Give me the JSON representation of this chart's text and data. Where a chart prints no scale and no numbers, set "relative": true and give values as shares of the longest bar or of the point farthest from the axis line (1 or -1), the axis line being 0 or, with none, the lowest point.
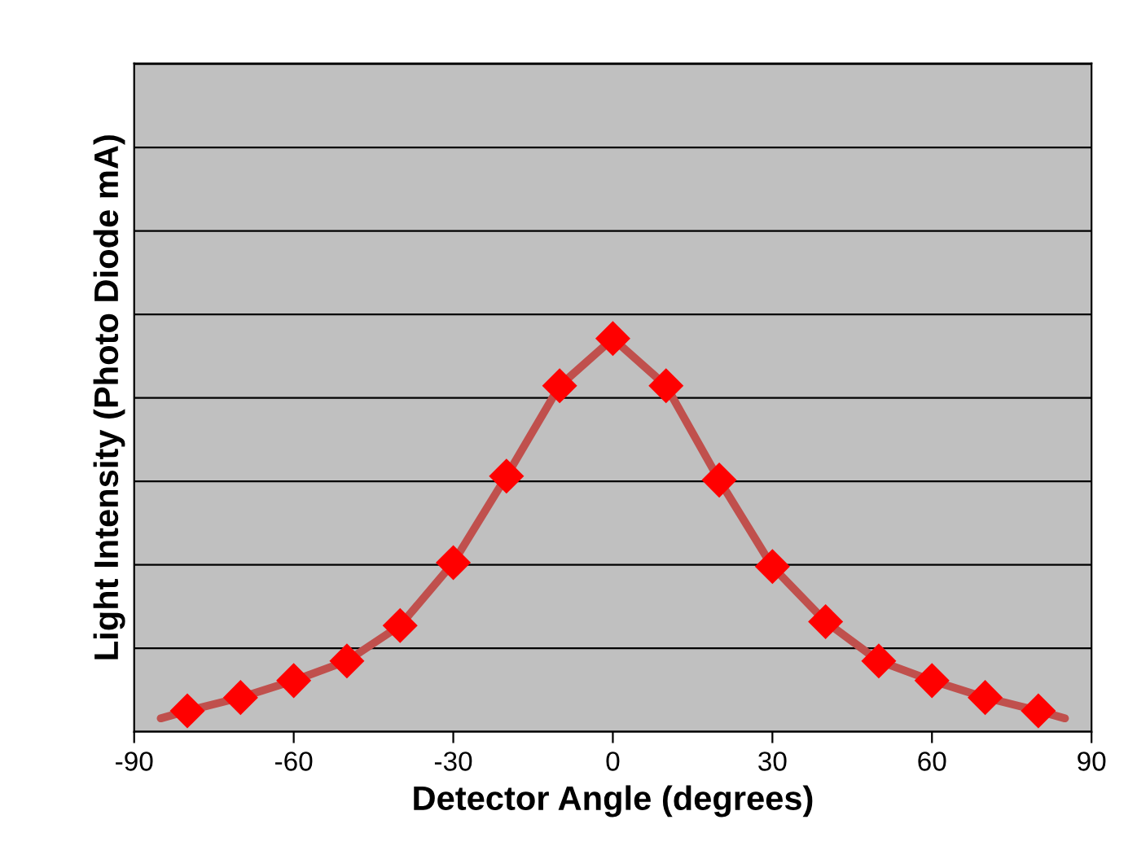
{
  "chart_data": {
    "type": "scatter",
    "xlabel": "Detector Angle (degrees)",
    "ylabel": "Light Intensity (Photo Diode mA)",
    "relative": true,
    "xlim": [
      -90,
      90
    ],
    "xticks": [
      -90,
      -60,
      -30,
      0,
      30,
      60,
      90
    ],
    "grid": "y",
    "legend": false,
    "tick_labels": "x",
    "series": [
      {
        "type": "line",
        "color": "#c0504d",
        "marker": "none",
        "line_style": "solid",
        "x": [
          -85,
          -80,
          -70,
          -60,
          -50,
          -40,
          -30,
          -20,
          -10,
          0,
          10,
          20,
          30,
          40,
          50,
          60,
          70,
          80,
          85
        ],
        "values": [
          0.034,
          0.053,
          0.087,
          0.13,
          0.18,
          0.27,
          0.43,
          0.65,
          0.88,
          1,
          0.88,
          0.64,
          0.42,
          0.28,
          0.18,
          0.13,
          0.087,
          0.053,
          0.034
        ]
      },
      {
        "color": "#ff0000",
        "marker": "diamond",
        "x": [
          -80,
          -70,
          -60,
          -50,
          -40,
          -30,
          -20,
          -10,
          0,
          10,
          20,
          30,
          40,
          50,
          60,
          70,
          80
        ],
        "values": [
          0.053,
          0.087,
          0.13,
          0.18,
          0.27,
          0.43,
          0.65,
          0.88,
          1,
          0.88,
          0.64,
          0.42,
          0.28,
          0.18,
          0.13,
          0.087,
          0.053
        ]
      }
    ]
  }
}
